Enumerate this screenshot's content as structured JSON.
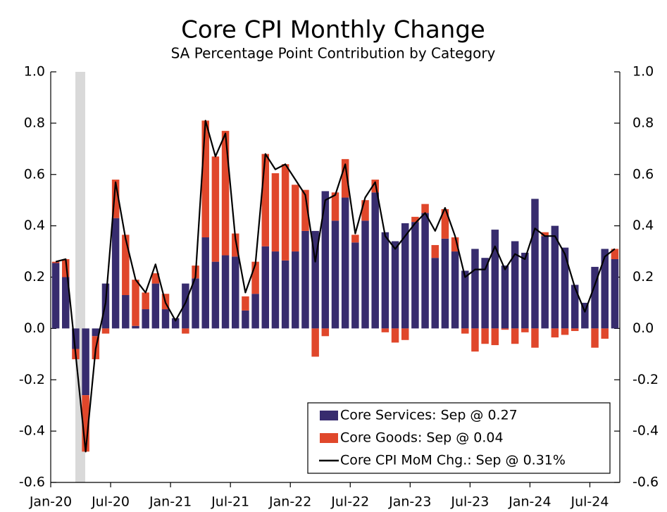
{
  "chart_data": {
    "type": "bar",
    "stacked": true,
    "title": "Core CPI Monthly Change",
    "subtitle": "SA Percentage Point Contribution by Category",
    "categories": [
      "Jan-20",
      null,
      null,
      null,
      null,
      null,
      "Jul-20",
      null,
      null,
      null,
      null,
      null,
      "Jan-21",
      null,
      null,
      null,
      null,
      null,
      "Jul-21",
      null,
      null,
      null,
      null,
      null,
      "Jan-22",
      null,
      null,
      null,
      null,
      null,
      "Jul-22",
      null,
      null,
      null,
      null,
      null,
      "Jan-23",
      null,
      null,
      null,
      null,
      null,
      "Jul-23",
      null,
      null,
      null,
      null,
      null,
      "Jan-24",
      null,
      null,
      null,
      null,
      null,
      "Jul-24",
      null,
      null
    ],
    "series": [
      {
        "name": "Core Services: Sep @ 0.27",
        "color": "#372c6e",
        "values": [
          0.255,
          0.2,
          -0.08,
          -0.26,
          -0.03,
          0.175,
          0.43,
          0.13,
          0.01,
          0.075,
          0.175,
          0.075,
          0.04,
          0.175,
          0.195,
          0.355,
          0.26,
          0.285,
          0.28,
          0.07,
          0.135,
          0.32,
          0.3,
          0.265,
          0.3,
          0.38,
          0.38,
          0.535,
          0.42,
          0.51,
          0.335,
          0.42,
          0.53,
          0.375,
          0.34,
          0.41,
          0.415,
          0.45,
          0.275,
          0.35,
          0.3,
          0.225,
          0.31,
          0.275,
          0.385,
          0.245,
          0.34,
          0.295,
          0.505,
          0.36,
          0.4,
          0.315,
          0.17,
          0.1,
          0.24,
          0.31,
          0.27
        ]
      },
      {
        "name": "Core Goods: Sep @ 0.04",
        "color": "#e0472b",
        "values": [
          0.005,
          0.07,
          -0.04,
          -0.22,
          -0.09,
          -0.02,
          0.15,
          0.235,
          0.18,
          0.065,
          0.04,
          0.06,
          0.0,
          -0.02,
          0.05,
          0.455,
          0.41,
          0.485,
          0.09,
          0.055,
          0.125,
          0.36,
          0.305,
          0.375,
          0.26,
          0.16,
          -0.11,
          -0.03,
          0.11,
          0.15,
          0.03,
          0.08,
          0.05,
          -0.015,
          -0.055,
          -0.045,
          0.02,
          0.035,
          0.05,
          0.115,
          0.055,
          -0.02,
          -0.09,
          -0.06,
          -0.065,
          -0.005,
          -0.06,
          -0.015,
          -0.075,
          0.015,
          -0.035,
          -0.025,
          -0.01,
          0.0,
          -0.075,
          -0.04,
          0.04
        ]
      },
      {
        "name": "Core CPI MoM Chg.: Sep @ 0.31%",
        "color": "#000000",
        "type": "line",
        "values": [
          0.26,
          0.27,
          -0.1,
          -0.48,
          -0.08,
          0.1,
          0.57,
          0.35,
          0.19,
          0.14,
          0.25,
          0.1,
          0.03,
          0.1,
          0.2,
          0.81,
          0.67,
          0.76,
          0.35,
          0.14,
          0.25,
          0.68,
          0.62,
          0.64,
          0.58,
          0.52,
          0.26,
          0.5,
          0.52,
          0.64,
          0.37,
          0.51,
          0.57,
          0.36,
          0.31,
          0.36,
          0.41,
          0.45,
          0.38,
          0.47,
          0.36,
          0.2,
          0.23,
          0.23,
          0.32,
          0.23,
          0.29,
          0.27,
          0.39,
          0.36,
          0.36,
          0.29,
          0.16,
          0.065,
          0.17,
          0.28,
          0.31
        ]
      }
    ],
    "ylim": [
      -0.6,
      1.0
    ],
    "yticks": [
      {
        "value": 1.0,
        "label": "1.0"
      },
      0.8,
      0.6,
      0.4,
      0.2,
      {
        "value": 0,
        "label": "0.0"
      },
      -0.2,
      -0.4,
      -0.6
    ],
    "y2lim": [
      -0.6,
      1.0
    ],
    "y2ticks": [
      {
        "value": 1.0,
        "label": "1.0"
      },
      0.8,
      0.6,
      0.4,
      0.2,
      {
        "value": 0,
        "label": "0.0"
      },
      -0.2,
      -0.4,
      -0.6
    ],
    "legend": "lower right"
  }
}
